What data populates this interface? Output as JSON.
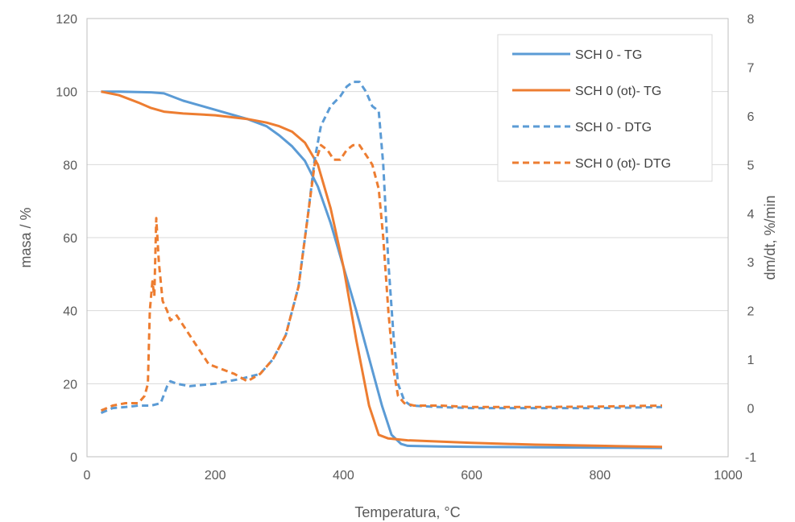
{
  "chart_data": {
    "type": "line",
    "xlabel": "Temperatura, °C",
    "ylabel": "masa / %",
    "y2label": "dm/dt, %/min",
    "xlim": [
      0,
      1000
    ],
    "ylim": [
      0,
      120
    ],
    "y2lim": [
      -1,
      8
    ],
    "xticks": [
      0,
      200,
      400,
      600,
      800,
      1000
    ],
    "yticks": [
      0,
      20,
      40,
      60,
      80,
      100,
      120
    ],
    "y2ticks": [
      -1,
      0,
      1,
      2,
      3,
      4,
      5,
      6,
      7,
      8
    ],
    "grid": true,
    "legend_position": "top-right",
    "series": [
      {
        "name": "SCH 0 - TG",
        "axis": "left",
        "style": "solid",
        "color": "#5B9BD5",
        "x": [
          22,
          50,
          100,
          120,
          150,
          200,
          250,
          280,
          300,
          320,
          340,
          360,
          380,
          400,
          420,
          440,
          460,
          475,
          490,
          500,
          550,
          600,
          700,
          800,
          897
        ],
        "y": [
          100,
          100,
          99.8,
          99.5,
          97.5,
          95,
          92.5,
          90.5,
          88,
          85,
          81,
          74,
          64,
          52,
          40,
          27,
          14,
          6,
          3.5,
          3,
          2.8,
          2.7,
          2.6,
          2.5,
          2.4
        ]
      },
      {
        "name": "SCH 0 (ot)- TG",
        "axis": "left",
        "style": "solid",
        "color": "#ED7D31",
        "x": [
          22,
          50,
          80,
          100,
          120,
          150,
          200,
          250,
          280,
          300,
          320,
          340,
          360,
          380,
          400,
          420,
          440,
          455,
          470,
          500,
          600,
          700,
          800,
          897
        ],
        "y": [
          100,
          99,
          97,
          95.5,
          94.5,
          94,
          93.5,
          92.5,
          91.5,
          90.5,
          89,
          86,
          80,
          68,
          52,
          32,
          14,
          6,
          5,
          4.5,
          3.8,
          3.3,
          3.0,
          2.7
        ]
      },
      {
        "name": "SCH 0 - DTG",
        "axis": "right",
        "style": "dashed",
        "color": "#5B9BD5",
        "x": [
          22,
          40,
          60,
          80,
          100,
          115,
          125,
          130,
          140,
          160,
          200,
          240,
          270,
          290,
          310,
          330,
          345,
          355,
          365,
          380,
          395,
          405,
          415,
          425,
          435,
          445,
          455,
          462,
          470,
          478,
          485,
          495,
          505,
          550,
          600,
          700,
          800,
          897
        ],
        "y": [
          -0.1,
          0,
          0.02,
          0.05,
          0.05,
          0.1,
          0.45,
          0.55,
          0.5,
          0.45,
          0.5,
          0.6,
          0.7,
          1.0,
          1.5,
          2.5,
          4.0,
          5.1,
          5.8,
          6.2,
          6.4,
          6.6,
          6.7,
          6.7,
          6.5,
          6.2,
          6.1,
          5.0,
          3.0,
          1.5,
          0.5,
          0.15,
          0.05,
          0.02,
          0.0,
          0.0,
          0.0,
          0.02
        ]
      },
      {
        "name": "SCH 0 (ot)- DTG",
        "axis": "right",
        "style": "dashed",
        "color": "#ED7D31",
        "x": [
          22,
          40,
          60,
          80,
          90,
          95,
          98,
          102,
          105,
          108,
          112,
          118,
          125,
          130,
          140,
          150,
          170,
          190,
          210,
          230,
          250,
          270,
          290,
          310,
          330,
          345,
          355,
          365,
          375,
          385,
          395,
          405,
          415,
          425,
          435,
          445,
          455,
          462,
          470,
          478,
          485,
          495,
          510,
          550,
          600,
          700,
          800,
          897
        ],
        "y": [
          -0.05,
          0.05,
          0.1,
          0.1,
          0.25,
          0.5,
          2.0,
          2.6,
          2.3,
          3.9,
          3.0,
          2.2,
          2.0,
          1.8,
          1.9,
          1.7,
          1.3,
          0.9,
          0.8,
          0.7,
          0.55,
          0.7,
          1.0,
          1.5,
          2.5,
          4.0,
          5.0,
          5.4,
          5.3,
          5.1,
          5.1,
          5.3,
          5.4,
          5.4,
          5.2,
          5.0,
          4.5,
          3.5,
          2.0,
          0.8,
          0.25,
          0.1,
          0.05,
          0.05,
          0.02,
          0.02,
          0.03,
          0.05
        ]
      }
    ]
  }
}
